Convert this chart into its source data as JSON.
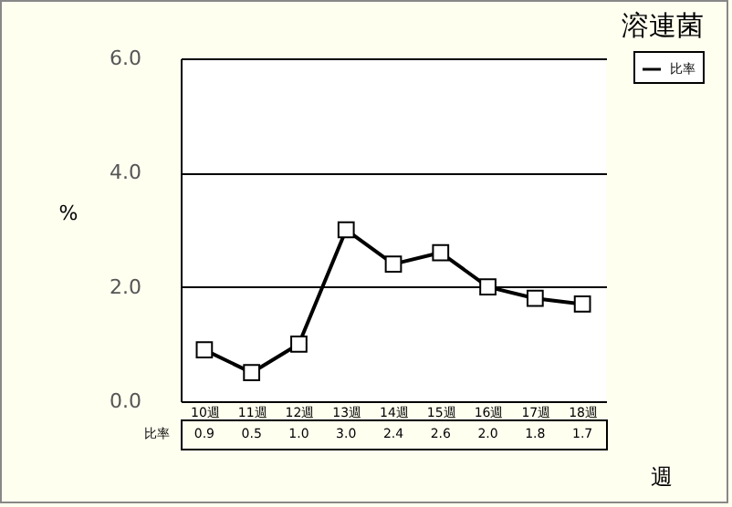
{
  "chart_data": {
    "type": "line",
    "title": "溶連菌",
    "ylabel": "%",
    "xlabel": "週",
    "categories": [
      "10週",
      "11週",
      "12週",
      "13週",
      "14週",
      "15週",
      "16週",
      "17週",
      "18週"
    ],
    "series": [
      {
        "name": "比率",
        "color": "#000000",
        "values": [
          0.9,
          0.5,
          1.0,
          3.0,
          2.4,
          2.6,
          2.0,
          1.8,
          1.7
        ],
        "value_labels": [
          "0.9",
          "0.5",
          "1.0",
          "3.0",
          "2.4",
          "2.6",
          "2.0",
          "1.8",
          "1.7"
        ]
      }
    ],
    "ylim": [
      0,
      6
    ],
    "yticks": [
      {
        "value": 0,
        "label": "0.0"
      },
      {
        "value": 2,
        "label": "2.0"
      },
      {
        "value": 4,
        "label": "4.0"
      },
      {
        "value": 6,
        "label": "6.0"
      }
    ],
    "grid": "y",
    "legend": "top right",
    "marker": "square",
    "line_style": "solid"
  }
}
